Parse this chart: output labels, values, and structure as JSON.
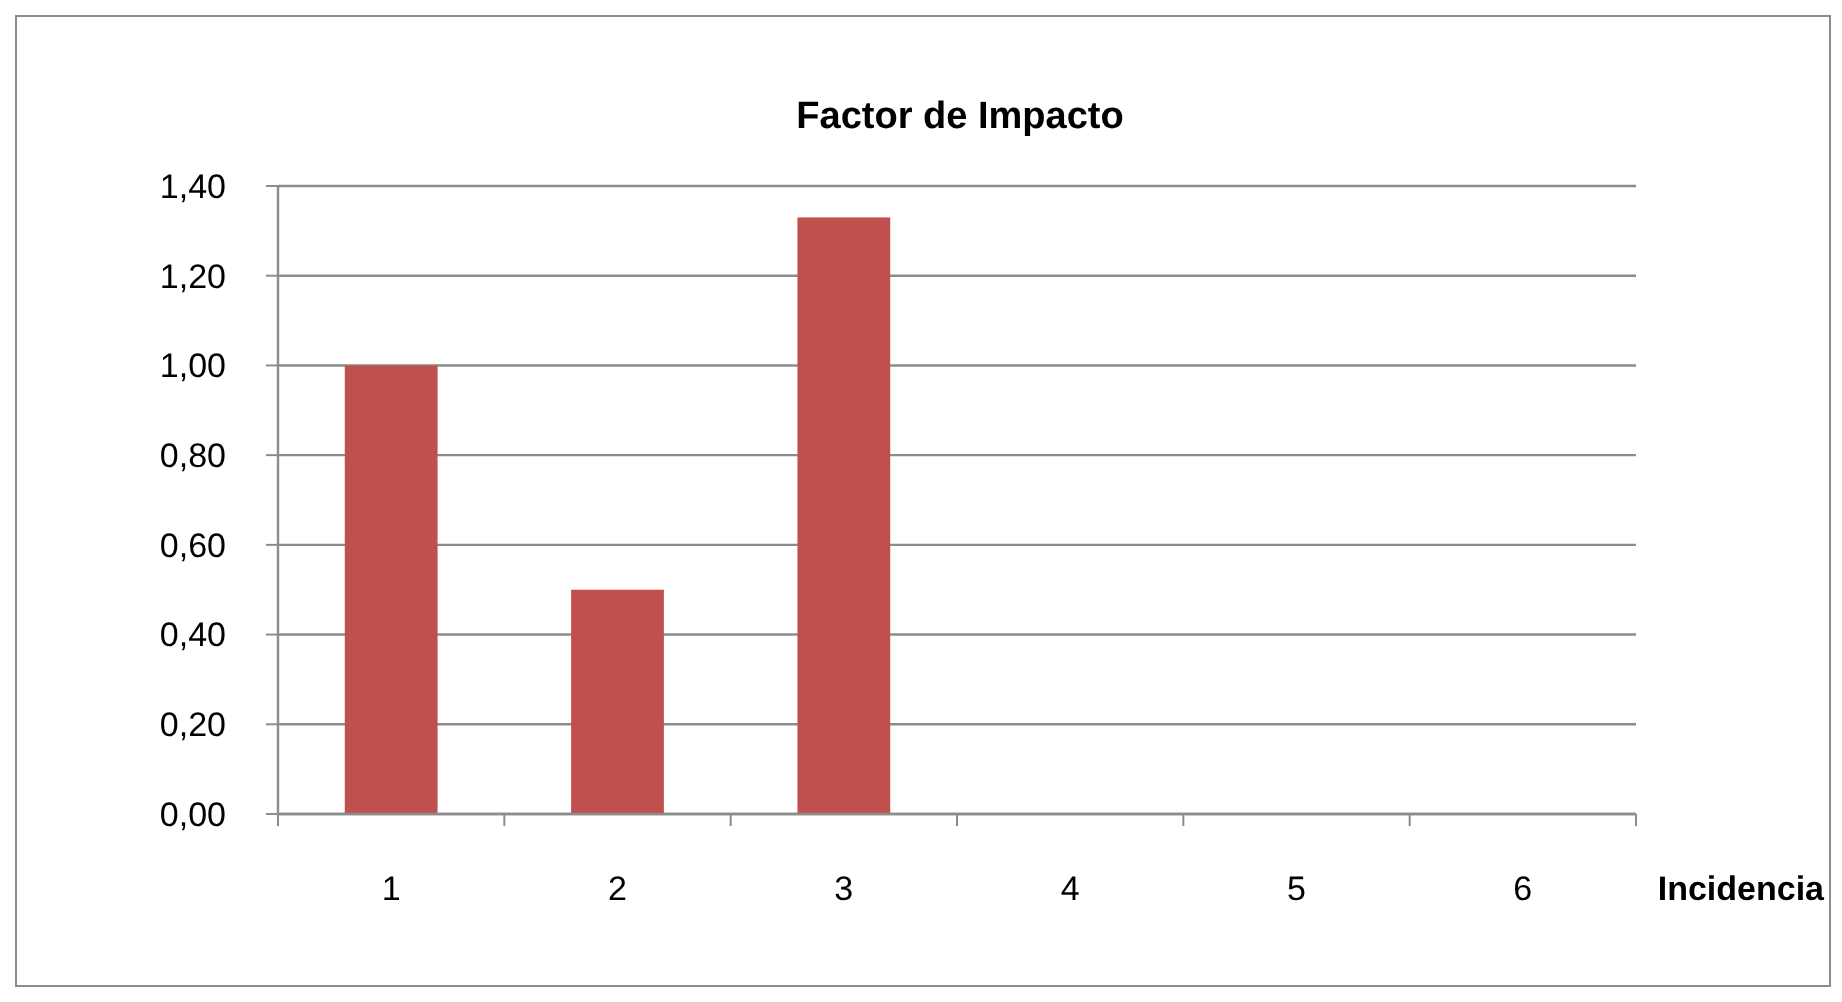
{
  "chart_data": {
    "type": "bar",
    "title": "Factor de Impacto",
    "xlabel": "Incidencia",
    "categories": [
      "1",
      "2",
      "3",
      "4",
      "5",
      "6"
    ],
    "values": [
      1.0,
      0.5,
      1.33,
      null,
      null,
      null
    ],
    "color": "#c0504d",
    "ylim": [
      0,
      1.4
    ],
    "yticks": [
      {
        "value": 0,
        "label": "0,00"
      },
      {
        "value": 0.2,
        "label": "0,20"
      },
      {
        "value": 0.4,
        "label": "0,40"
      },
      {
        "value": 0.6,
        "label": "0,60"
      },
      {
        "value": 0.8,
        "label": "0,80"
      },
      {
        "value": 1.0,
        "label": "1,00"
      },
      {
        "value": 1.2,
        "label": "1,20"
      },
      {
        "value": 1.4,
        "label": "1,40"
      }
    ],
    "grid": "y"
  }
}
